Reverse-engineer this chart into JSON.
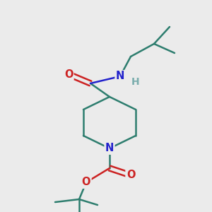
{
  "bg_color": "#ebebeb",
  "bond_color": "#2d7d6e",
  "N_color": "#2222cc",
  "O_color": "#cc2222",
  "H_color": "#7aadad",
  "line_width": 1.8,
  "font_size": 10.5,
  "figsize": [
    3.0,
    3.0
  ],
  "dpi": 100,
  "xlim": [
    0,
    300
  ],
  "ylim": [
    0,
    300
  ]
}
